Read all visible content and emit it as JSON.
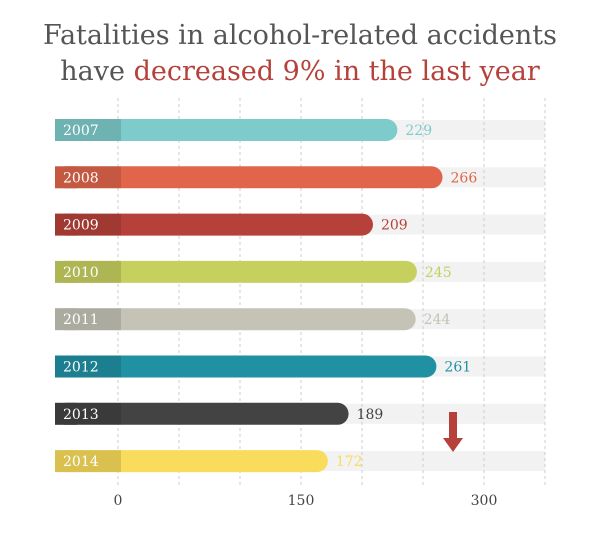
{
  "title": {
    "line1": "Fatalities in alcohol-related accidents",
    "line2_prefix": "have ",
    "line2_highlight": "decreased 9% in the last year"
  },
  "colors": {
    "title_text": "#555555",
    "highlight": "#b5413a",
    "background_band": "#f2f2f2",
    "grid": "#cccccc",
    "arrow": "#b5413a"
  },
  "chart_data": {
    "type": "bar",
    "orientation": "horizontal",
    "categories": [
      "2007",
      "2008",
      "2009",
      "2010",
      "2011",
      "2012",
      "2013",
      "2014"
    ],
    "values": [
      229,
      266,
      209,
      245,
      244,
      261,
      189,
      172
    ],
    "bar_colors": [
      "#7ecbcb",
      "#e0654a",
      "#b5413a",
      "#c5d05e",
      "#c4c3b6",
      "#1f91a3",
      "#434343",
      "#f9dc5b"
    ],
    "label_colors": [
      "#7ecbcb",
      "#e0654a",
      "#b5413a",
      "#c5d05e",
      "#c4c3b6",
      "#1f91a3",
      "#434343",
      "#f9dc5b"
    ],
    "xticks": [
      0,
      150,
      300
    ],
    "xlim": [
      0,
      350
    ],
    "grid": true,
    "annotation": "down-arrow"
  }
}
